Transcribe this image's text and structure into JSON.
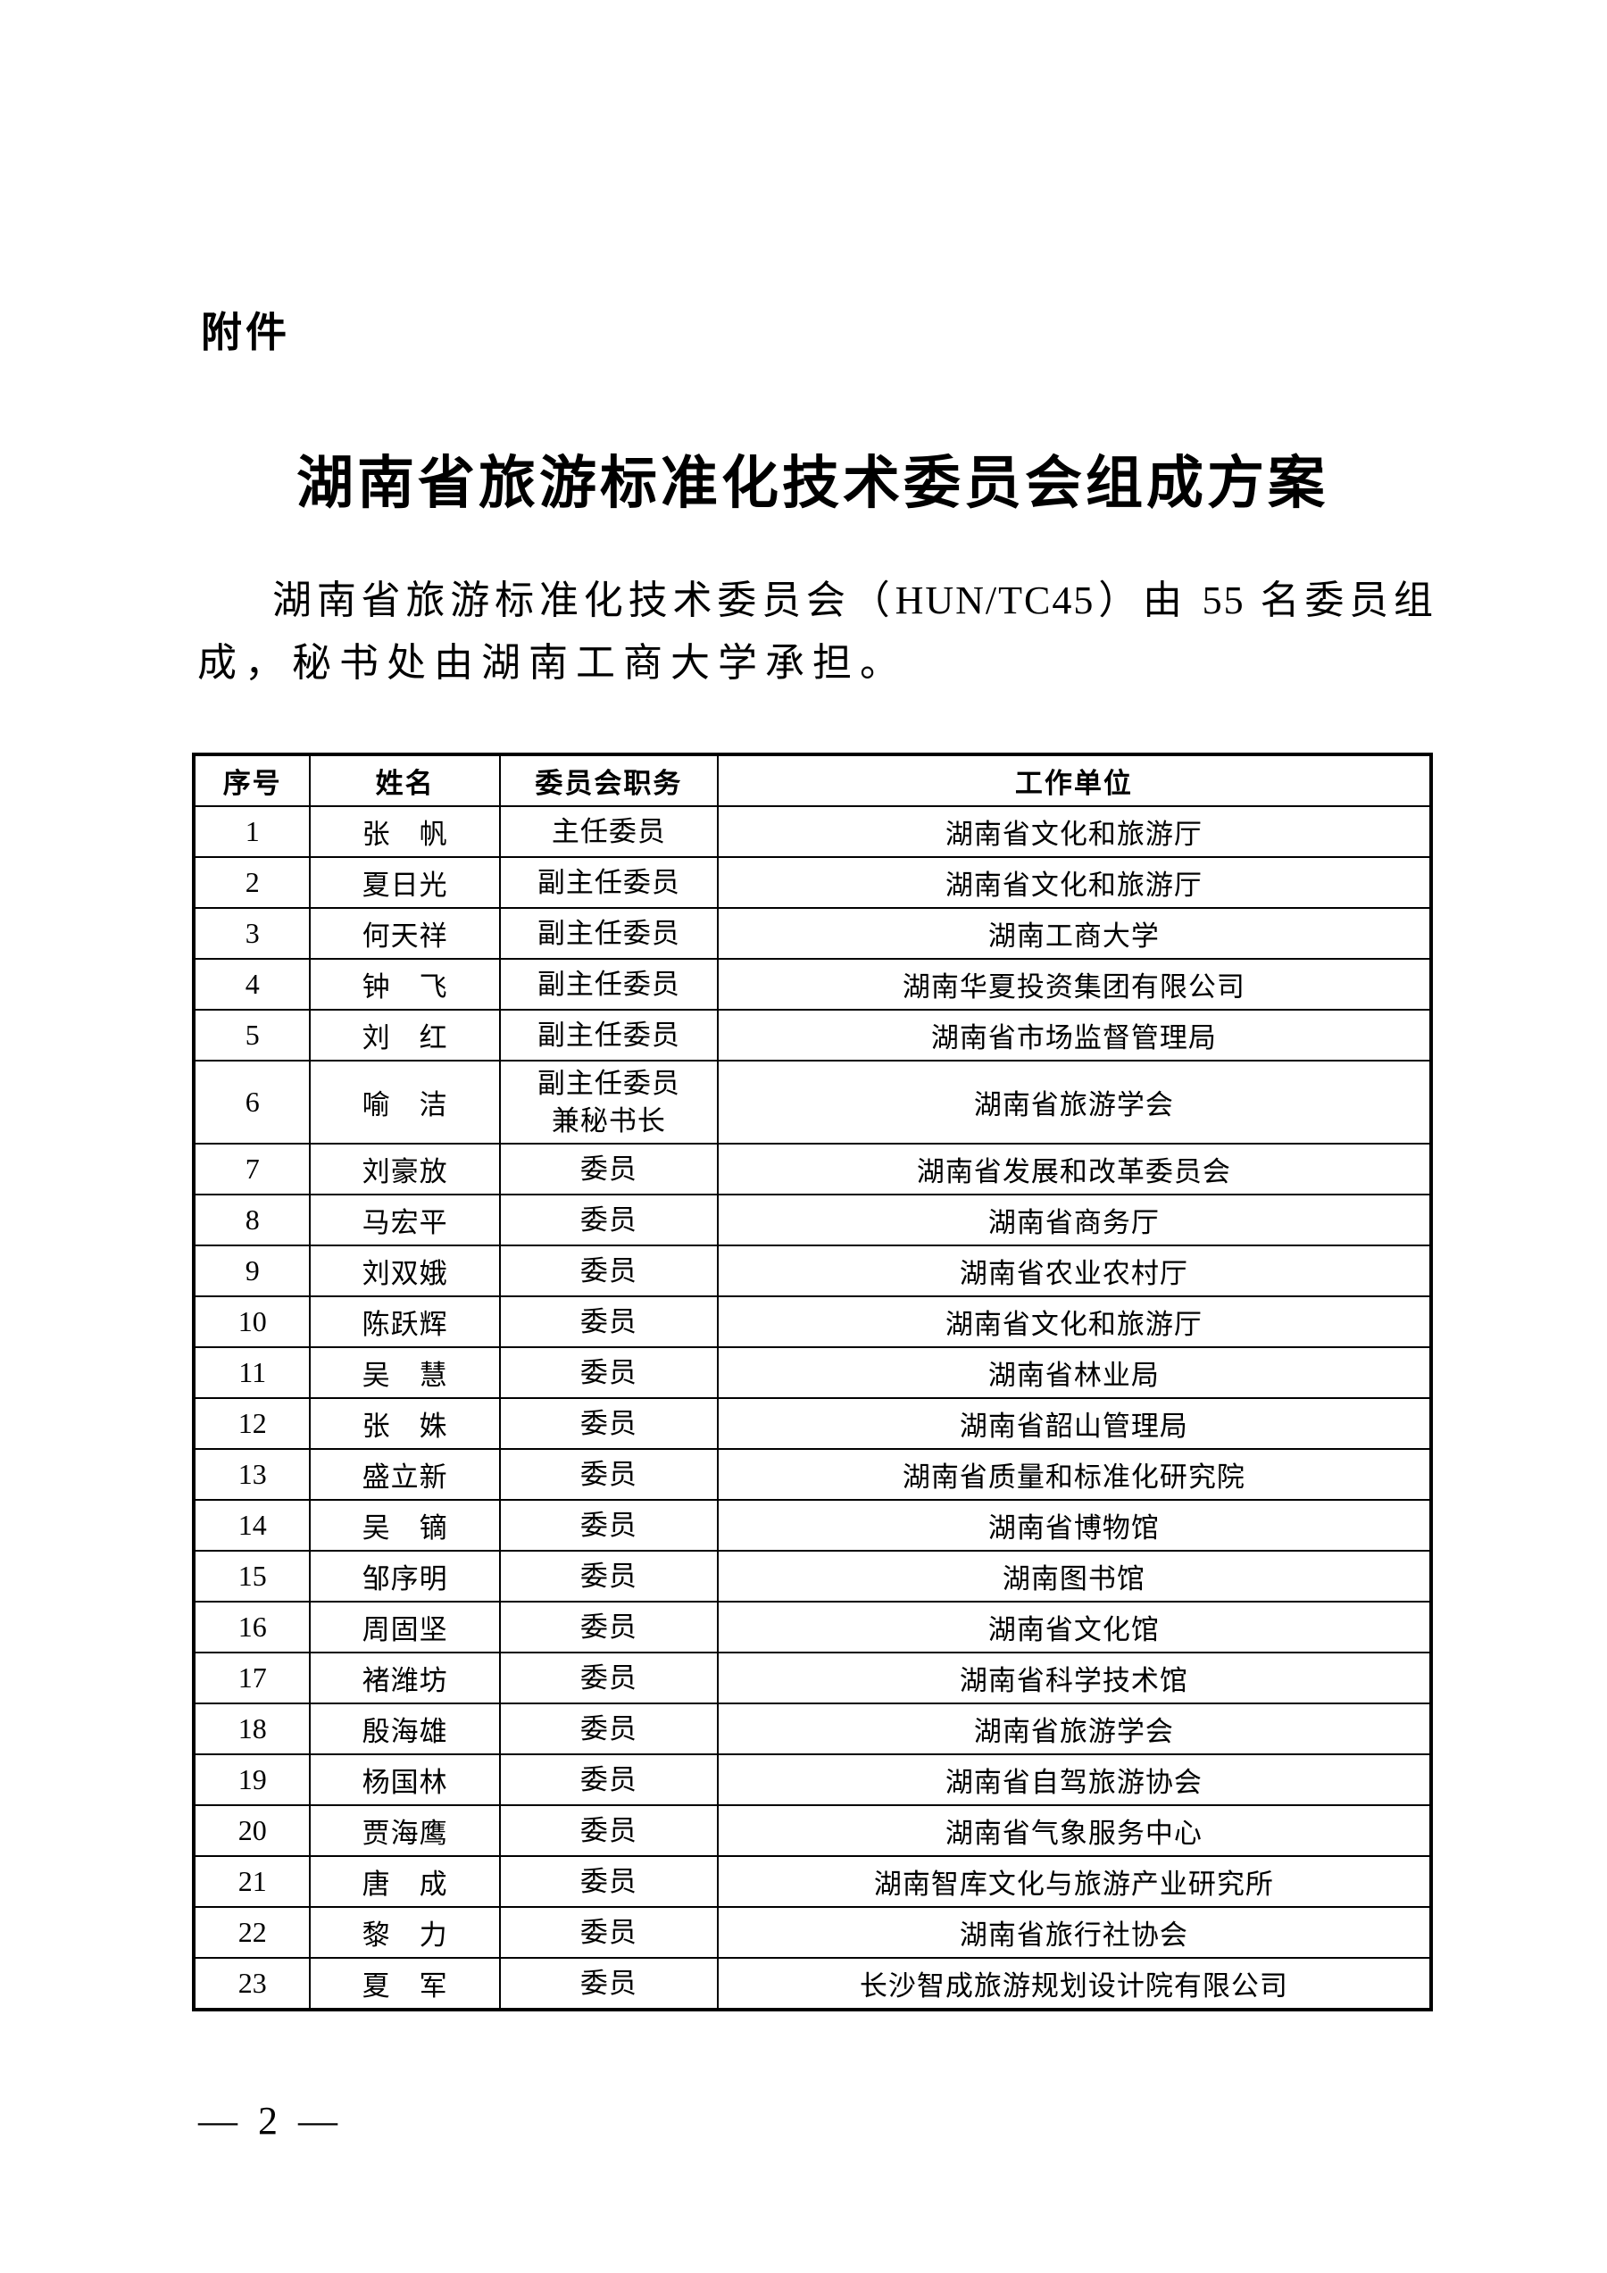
{
  "page": {
    "attachment_label": "附件",
    "title": "湖南省旅游标准化技术委员会组成方案",
    "paragraph_line1": "湖南省旅游标准化技术委员会（HUN/TC45）由 55 名委员组",
    "paragraph_line2": "成，秘书处由湖南工商大学承担。",
    "page_number": "— 2 —"
  },
  "table": {
    "headers": [
      "序号",
      "姓名",
      "委员会职务",
      "工作单位"
    ],
    "rows": [
      {
        "no": "1",
        "name": "张　帆",
        "position": "主任委员",
        "unit": "湖南省文化和旅游厅"
      },
      {
        "no": "2",
        "name": "夏日光",
        "position": "副主任委员",
        "unit": "湖南省文化和旅游厅"
      },
      {
        "no": "3",
        "name": "何天祥",
        "position": "副主任委员",
        "unit": "湖南工商大学"
      },
      {
        "no": "4",
        "name": "钟　飞",
        "position": "副主任委员",
        "unit": "湖南华夏投资集团有限公司"
      },
      {
        "no": "5",
        "name": "刘　红",
        "position": "副主任委员",
        "unit": "湖南省市场监督管理局"
      },
      {
        "no": "6",
        "name": "喻　洁",
        "position": "副主任委员\n兼秘书长",
        "unit": "湖南省旅游学会"
      },
      {
        "no": "7",
        "name": "刘豪放",
        "position": "委员",
        "unit": "湖南省发展和改革委员会"
      },
      {
        "no": "8",
        "name": "马宏平",
        "position": "委员",
        "unit": "湖南省商务厅"
      },
      {
        "no": "9",
        "name": "刘双娥",
        "position": "委员",
        "unit": "湖南省农业农村厅"
      },
      {
        "no": "10",
        "name": "陈跃辉",
        "position": "委员",
        "unit": "湖南省文化和旅游厅"
      },
      {
        "no": "11",
        "name": "吴　慧",
        "position": "委员",
        "unit": "湖南省林业局"
      },
      {
        "no": "12",
        "name": "张　姝",
        "position": "委员",
        "unit": "湖南省韶山管理局"
      },
      {
        "no": "13",
        "name": "盛立新",
        "position": "委员",
        "unit": "湖南省质量和标准化研究院"
      },
      {
        "no": "14",
        "name": "吴　镝",
        "position": "委员",
        "unit": "湖南省博物馆"
      },
      {
        "no": "15",
        "name": "邹序明",
        "position": "委员",
        "unit": "湖南图书馆"
      },
      {
        "no": "16",
        "name": "周固坚",
        "position": "委员",
        "unit": "湖南省文化馆"
      },
      {
        "no": "17",
        "name": "褚潍坊",
        "position": "委员",
        "unit": "湖南省科学技术馆"
      },
      {
        "no": "18",
        "name": "殷海雄",
        "position": "委员",
        "unit": "湖南省旅游学会"
      },
      {
        "no": "19",
        "name": "杨国林",
        "position": "委员",
        "unit": "湖南省自驾旅游协会"
      },
      {
        "no": "20",
        "name": "贾海鹰",
        "position": "委员",
        "unit": "湖南省气象服务中心"
      },
      {
        "no": "21",
        "name": "唐　成",
        "position": "委员",
        "unit": "湖南智库文化与旅游产业研究所"
      },
      {
        "no": "22",
        "name": "黎　力",
        "position": "委员",
        "unit": "湖南省旅行社协会"
      },
      {
        "no": "23",
        "name": "夏　军",
        "position": "委员",
        "unit": "长沙智成旅游规划设计院有限公司"
      }
    ]
  }
}
